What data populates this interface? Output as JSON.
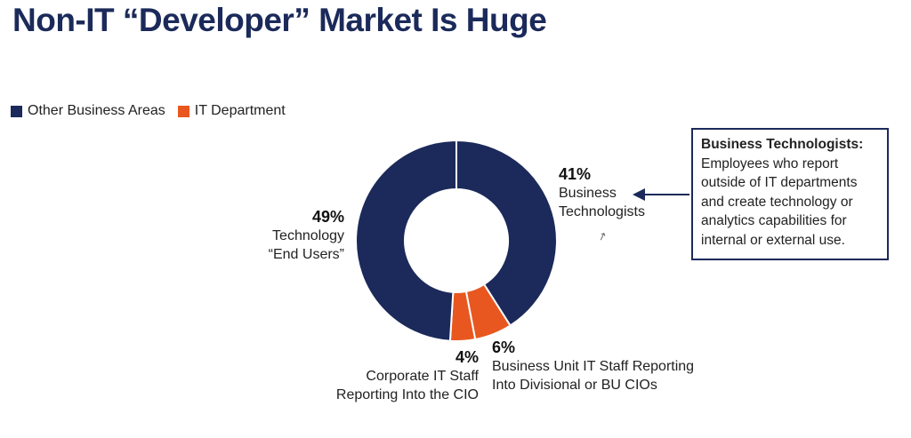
{
  "header": {
    "title": "Non-IT “Developer” Market Is Huge"
  },
  "legend": {
    "items": [
      {
        "label": "Other Business Areas",
        "color": "#1b2a5a"
      },
      {
        "label": "IT Department",
        "color": "#e8571f"
      }
    ]
  },
  "chart_data": {
    "type": "pie",
    "subtype": "donut",
    "title": "Non-IT “Developer” Market Is Huge",
    "slices": [
      {
        "pct_label": "41%",
        "value": 41,
        "label_lines": [
          "Business",
          "Technologists"
        ],
        "group": "Other Business Areas",
        "color": "#1b2a5a"
      },
      {
        "pct_label": "6%",
        "value": 6,
        "label_lines": [
          "Business Unit IT Staff Reporting",
          "Into Divisional or BU CIOs"
        ],
        "group": "IT Department",
        "color": "#e8571f"
      },
      {
        "pct_label": "4%",
        "value": 4,
        "label_lines": [
          "Corporate IT Staff",
          "Reporting Into the CIO"
        ],
        "group": "IT Department",
        "color": "#e8571f"
      },
      {
        "pct_label": "49%",
        "value": 49,
        "label_lines": [
          "Technology",
          "“End Users”"
        ],
        "group": "Other Business Areas",
        "color": "#1b2a5a"
      }
    ]
  },
  "callout": {
    "title": "Business Technologists:",
    "lines": [
      "Employees who report",
      "outside of IT departments",
      "and create technology or",
      "analytics capabilities for",
      "internal or external use."
    ]
  },
  "icons": {
    "cursor": "mouse-pointer-icon",
    "arrow": "left-arrow-icon"
  }
}
